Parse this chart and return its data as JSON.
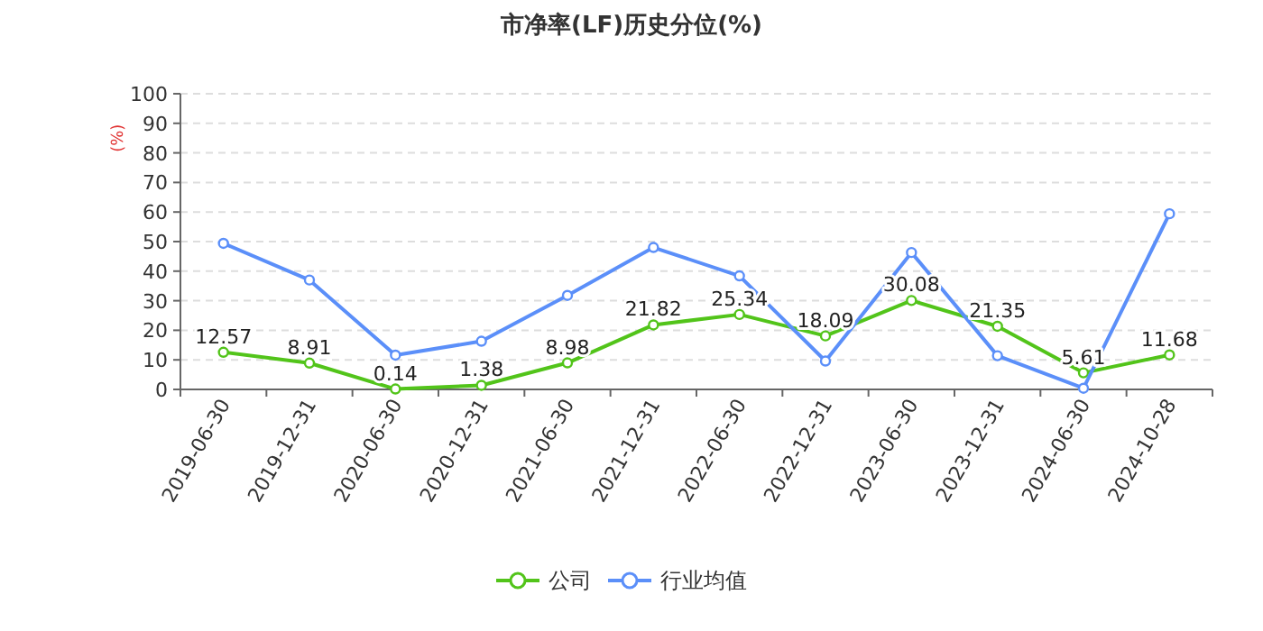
{
  "chart_data": {
    "type": "line",
    "title": "市净率(LF)历史分位(%)",
    "ylabel": "(%)",
    "categories": [
      "2019-06-30",
      "2019-12-31",
      "2020-06-30",
      "2020-12-31",
      "2021-06-30",
      "2021-12-31",
      "2022-06-30",
      "2022-12-31",
      "2023-06-30",
      "2023-12-31",
      "2024-06-30",
      "2024-10-28"
    ],
    "series": [
      {
        "name": "公司",
        "color": "#52c41a",
        "values": [
          12.57,
          8.91,
          0.14,
          1.38,
          8.98,
          21.82,
          25.34,
          18.09,
          30.08,
          21.35,
          5.61,
          11.68
        ],
        "value_labels": [
          "12.57",
          "8.91",
          "0.14",
          "1.38",
          "8.98",
          "21.82",
          "25.34",
          "18.09",
          "30.08",
          "21.35",
          "5.61",
          "11.68"
        ]
      },
      {
        "name": "行业均值",
        "color": "#5b8ff9",
        "values": [
          49.4,
          37,
          11.6,
          16.3,
          31.8,
          48,
          38.4,
          9.6,
          46.3,
          11.4,
          0.4,
          59.4
        ]
      }
    ],
    "ylim": [
      0,
      100
    ],
    "yticks": [
      0,
      10,
      20,
      30,
      40,
      50,
      60,
      70,
      80,
      90,
      100
    ],
    "grid": "y",
    "legend": "bottom",
    "marker": "circle",
    "line_style": "solid"
  }
}
